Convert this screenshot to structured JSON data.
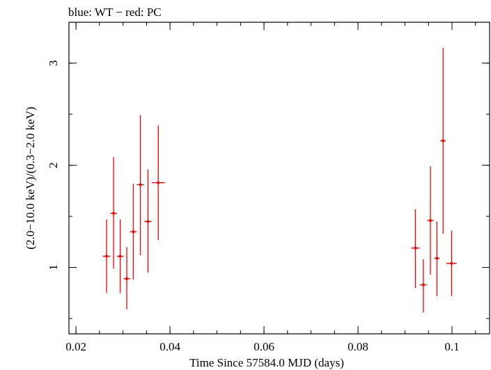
{
  "chart_data": {
    "type": "scatter",
    "title": "blue: WT − red: PC",
    "xlabel": "Time Since 57584.0 MJD (days)",
    "ylabel": "(2.0−10.0 keV)/(0.3−2.0 keV)",
    "xlim": [
      0.0185,
      0.108
    ],
    "ylim": [
      0.35,
      3.4
    ],
    "x_ticks": [
      {
        "value": 0.02,
        "label": "0.02"
      },
      {
        "value": 0.04,
        "label": "0.04"
      },
      {
        "value": 0.06,
        "label": "0.06"
      },
      {
        "value": 0.08,
        "label": "0.08"
      },
      {
        "value": 0.1,
        "label": "0.1"
      }
    ],
    "x_minor_step": 0.005,
    "y_ticks": [
      {
        "value": 1,
        "label": "1"
      },
      {
        "value": 2,
        "label": "2"
      },
      {
        "value": 3,
        "label": "3"
      }
    ],
    "y_minor_step": 0.5,
    "grid": false,
    "series": [
      {
        "name": "PC",
        "color": "#ff0000",
        "points": [
          {
            "x": 0.0265,
            "xerr": 0.0008,
            "y": 1.11,
            "ylo": 0.75,
            "yhi": 1.47
          },
          {
            "x": 0.028,
            "xerr": 0.0007,
            "y": 1.53,
            "ylo": 0.99,
            "yhi": 2.08
          },
          {
            "x": 0.0294,
            "xerr": 0.0007,
            "y": 1.11,
            "ylo": 0.75,
            "yhi": 1.47
          },
          {
            "x": 0.0308,
            "xerr": 0.0007,
            "y": 0.89,
            "ylo": 0.59,
            "yhi": 1.2
          },
          {
            "x": 0.0322,
            "xerr": 0.0007,
            "y": 1.35,
            "ylo": 0.88,
            "yhi": 1.82
          },
          {
            "x": 0.0337,
            "xerr": 0.0008,
            "y": 1.81,
            "ylo": 1.12,
            "yhi": 2.49
          },
          {
            "x": 0.0353,
            "xerr": 0.0008,
            "y": 1.45,
            "ylo": 0.95,
            "yhi": 1.96
          },
          {
            "x": 0.0375,
            "xerr": 0.0014,
            "y": 1.83,
            "ylo": 1.27,
            "yhi": 2.39
          },
          {
            "x": 0.0922,
            "xerr": 0.0009,
            "y": 1.19,
            "ylo": 0.8,
            "yhi": 1.57
          },
          {
            "x": 0.0939,
            "xerr": 0.0008,
            "y": 0.83,
            "ylo": 0.56,
            "yhi": 1.08
          },
          {
            "x": 0.0954,
            "xerr": 0.0007,
            "y": 1.46,
            "ylo": 0.93,
            "yhi": 1.99
          },
          {
            "x": 0.0968,
            "xerr": 0.0006,
            "y": 1.09,
            "ylo": 0.72,
            "yhi": 1.45
          },
          {
            "x": 0.0981,
            "xerr": 0.0006,
            "y": 2.24,
            "ylo": 1.33,
            "yhi": 3.15
          },
          {
            "x": 0.0999,
            "xerr": 0.0011,
            "y": 1.04,
            "ylo": 0.72,
            "yhi": 1.36
          }
        ]
      }
    ]
  }
}
